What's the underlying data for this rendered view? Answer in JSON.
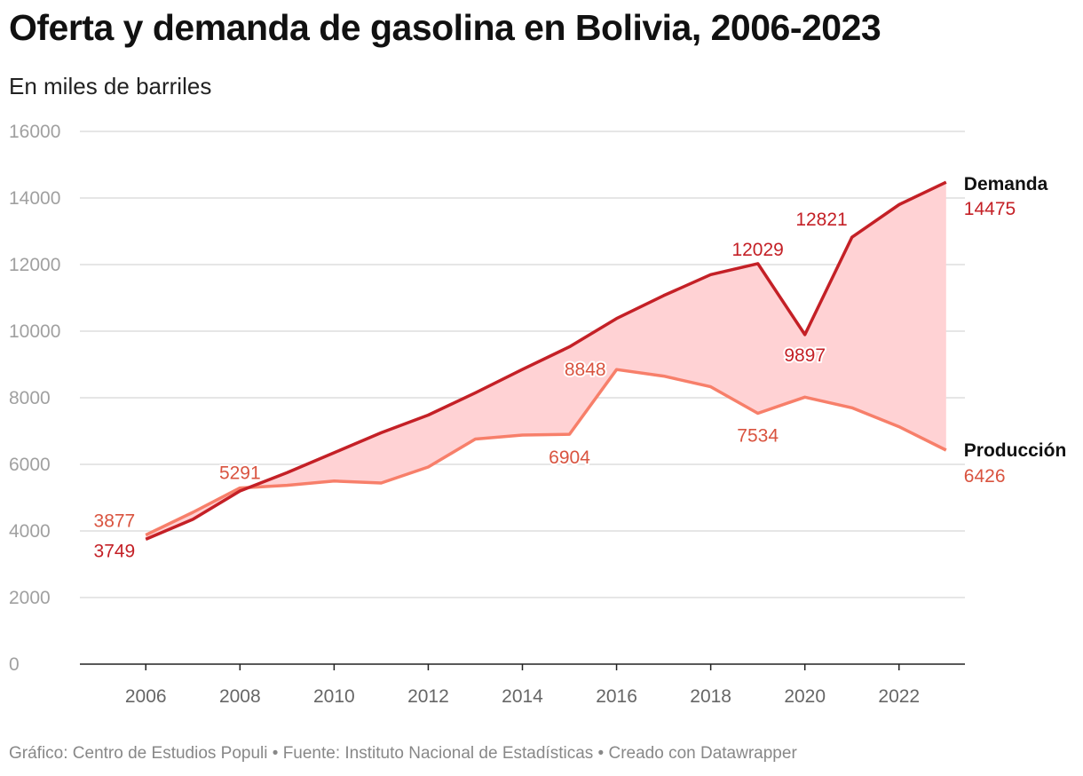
{
  "title": "Oferta y demanda de gasolina en Bolivia, 2006-2023",
  "subtitle": "En miles de barriles",
  "footer": "Gráfico: Centro de Estudios Populi • Fuente: Instituto Nacional de Estadísticas • Creado con Datawrapper",
  "colors": {
    "demanda": "#c42026",
    "produccion": "#f77f6a",
    "gap_fill": "#ffd2d4",
    "grid": "#dddddd",
    "axis": "#222222"
  },
  "chart_data": {
    "type": "line",
    "title": "Oferta y demanda de gasolina en Bolivia, 2006-2023",
    "subtitle": "En miles de barriles",
    "xlabel": "",
    "ylabel": "",
    "x": [
      2006,
      2007,
      2008,
      2009,
      2010,
      2011,
      2012,
      2013,
      2014,
      2015,
      2016,
      2017,
      2018,
      2019,
      2020,
      2021,
      2022,
      2023
    ],
    "xlim": [
      2004.6,
      2023.4
    ],
    "ylim": [
      0,
      16000
    ],
    "y_ticks": [
      "0",
      "2000",
      "4000",
      "6000",
      "8000",
      "10000",
      "12000",
      "14000",
      "16000"
    ],
    "x_ticks": [
      "2006",
      "2008",
      "2010",
      "2012",
      "2014",
      "2016",
      "2018",
      "2020",
      "2022"
    ],
    "grid": true,
    "area_between_series": true,
    "series": [
      {
        "name": "Demanda",
        "color": "#c42026",
        "values": [
          3749,
          4350,
          5200,
          5750,
          6350,
          6950,
          7480,
          8150,
          8850,
          9530,
          10380,
          11070,
          11700,
          12029,
          9897,
          12821,
          13800,
          14475
        ],
        "end_label": "14475",
        "point_labels": [
          {
            "year": 2006,
            "text": "3749"
          },
          {
            "year": 2019,
            "text": "12029"
          },
          {
            "year": 2020,
            "text": "9897"
          },
          {
            "year": 2021,
            "text": "12821"
          }
        ]
      },
      {
        "name": "Producción",
        "color": "#f77f6a",
        "values": [
          3877,
          4560,
          5291,
          5370,
          5500,
          5440,
          5920,
          6760,
          6880,
          6904,
          8848,
          8650,
          8330,
          7534,
          8020,
          7700,
          7130,
          6426
        ],
        "end_label": "6426",
        "point_labels": [
          {
            "year": 2006,
            "text": "3877"
          },
          {
            "year": 2008,
            "text": "5291"
          },
          {
            "year": 2015,
            "text": "6904"
          },
          {
            "year": 2016,
            "text": "8848"
          },
          {
            "year": 2019,
            "text": "7534"
          }
        ]
      }
    ]
  }
}
